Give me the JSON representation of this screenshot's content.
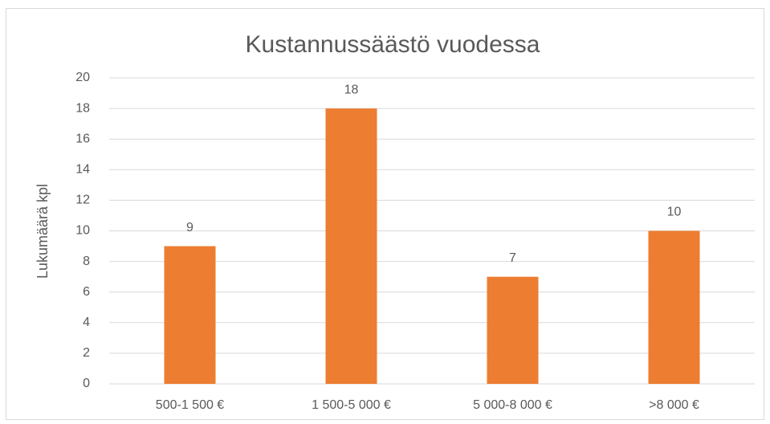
{
  "chart_data": {
    "type": "bar",
    "title": "Kustannussäästö vuodessa",
    "y_label": "Lukumäärä kpl",
    "categories": [
      "500-1 500 €",
      "1 500-5 000 €",
      "5 000-8 000 €",
      ">8 000 €"
    ],
    "values": [
      9,
      18,
      7,
      10
    ],
    "color": "#ed7d31",
    "ylim": [
      0,
      20
    ],
    "yticks": [
      0,
      2,
      4,
      6,
      8,
      10,
      12,
      14,
      16,
      18,
      20
    ],
    "grid": true
  }
}
